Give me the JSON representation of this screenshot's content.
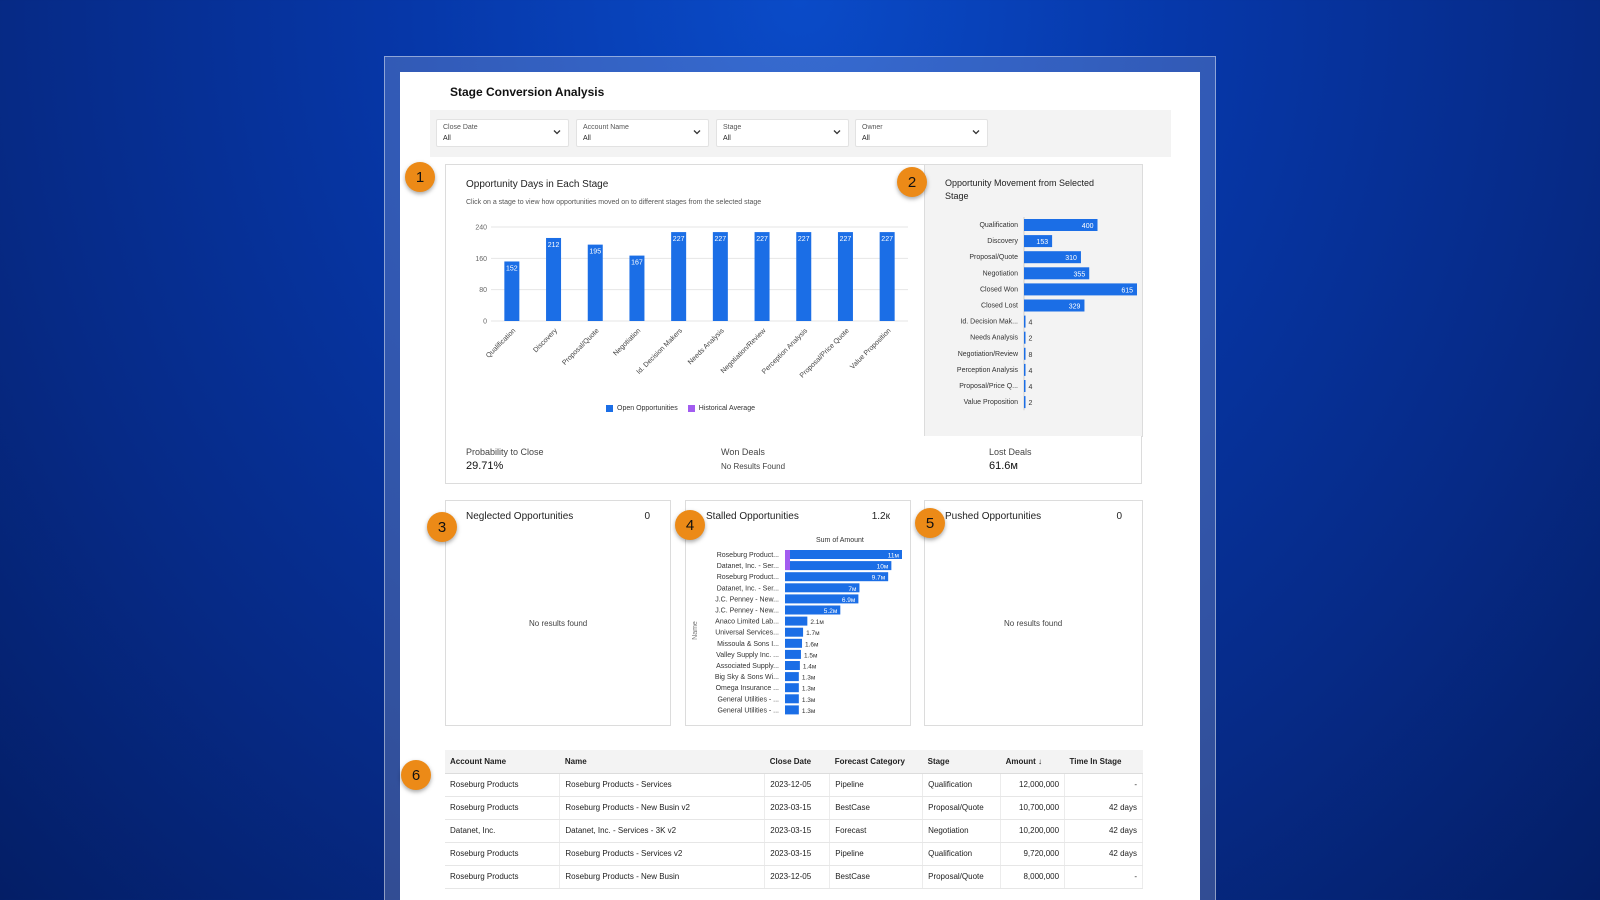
{
  "page": {
    "title": "Stage Conversion Analysis"
  },
  "filters": [
    {
      "label": "Close Date",
      "value": "All"
    },
    {
      "label": "Account Name",
      "value": "All"
    },
    {
      "label": "Stage",
      "value": "All"
    },
    {
      "label": "Owner",
      "value": "All"
    }
  ],
  "badges": [
    "1",
    "2",
    "3",
    "4",
    "5",
    "6"
  ],
  "colors": {
    "bar": "#1b6ee6",
    "historical": "#a25cf0",
    "badge": "#ec8a17",
    "background": "#0637a8"
  },
  "chart_days": {
    "title": "Opportunity Days in Each Stage",
    "subtitle": "Click on a stage to view how opportunities moved on to different stages from the selected stage",
    "legend": [
      "Open Opportunities",
      "Historical Average"
    ]
  },
  "chart_movement": {
    "title": "Opportunity Movement from Selected Stage"
  },
  "stats": {
    "probability_label": "Probability to Close",
    "probability_value": "29.71%",
    "won_label": "Won Deals",
    "won_value": "No Results Found",
    "lost_label": "Lost Deals",
    "lost_value": "61.6м"
  },
  "neglected": {
    "title": "Neglected Opportunities",
    "count": "0",
    "empty": "No results found"
  },
  "stalled": {
    "title": "Stalled Opportunities",
    "count": "1.2к",
    "chart_title": "Sum of Amount",
    "axis_label": "Name"
  },
  "pushed": {
    "title": "Pushed Opportunities",
    "count": "0",
    "empty": "No results found"
  },
  "table": {
    "headers": [
      "Account Name",
      "Name",
      "Close Date",
      "Forecast Category",
      "Stage",
      "Amount ↓",
      "Time In Stage"
    ],
    "rows": [
      [
        "Roseburg Products",
        "Roseburg Products - Services",
        "2023-12-05",
        "Pipeline",
        "Qualification",
        "12,000,000",
        "-"
      ],
      [
        "Roseburg Products",
        "Roseburg Products - New Busin v2",
        "2023-03-15",
        "BestCase",
        "Proposal/Quote",
        "10,700,000",
        "42 days"
      ],
      [
        "Datanet, Inc.",
        "Datanet, Inc. - Services - 3K v2",
        "2023-03-15",
        "Forecast",
        "Negotiation",
        "10,200,000",
        "42 days"
      ],
      [
        "Roseburg Products",
        "Roseburg Products - Services v2",
        "2023-03-15",
        "Pipeline",
        "Qualification",
        "9,720,000",
        "42 days"
      ],
      [
        "Roseburg Products",
        "Roseburg Products - New Busin",
        "2023-12-05",
        "BestCase",
        "Proposal/Quote",
        "8,000,000",
        "-"
      ]
    ]
  },
  "chart_data": [
    {
      "type": "bar",
      "title": "Opportunity Days in Each Stage",
      "categories": [
        "Qualification",
        "Discovery",
        "Proposal/Quote",
        "Negotiation",
        "Id. Decision Makers",
        "Needs Analysis",
        "Negotiation/Review",
        "Perception Analysis",
        "Proposal/Price Quote",
        "Value Proposition"
      ],
      "series": [
        {
          "name": "Open Opportunities",
          "values": [
            152,
            212,
            195,
            167,
            227,
            227,
            227,
            227,
            227,
            227
          ]
        }
      ],
      "yticks": [
        0,
        80,
        160,
        240
      ],
      "ylim": [
        0,
        240
      ],
      "xlabel": "",
      "ylabel": ""
    },
    {
      "type": "bar",
      "orientation": "horizontal",
      "title": "Opportunity Movement from Selected Stage",
      "categories": [
        "Qualification",
        "Discovery",
        "Proposal/Quote",
        "Negotiation",
        "Closed Won",
        "Closed Lost",
        "Id. Decision Mak...",
        "Needs Analysis",
        "Negotiation/Review",
        "Perception Analysis",
        "Proposal/Price Q...",
        "Value Proposition"
      ],
      "values": [
        400,
        153,
        310,
        355,
        615,
        329,
        4,
        2,
        8,
        4,
        4,
        2
      ],
      "xlim": [
        0,
        615
      ]
    },
    {
      "type": "bar",
      "orientation": "horizontal",
      "title": "Sum of Amount",
      "ylabel": "Name",
      "categories": [
        "Roseburg Product...",
        "Datanet, Inc. - Ser...",
        "Roseburg Product...",
        "Datanet, Inc. - Ser...",
        "J.C. Penney - New...",
        "J.C. Penney - New...",
        "Anaco Limited Lab...",
        "Universal Services...",
        "Missoula & Sons I...",
        "Valley Supply Inc. ...",
        "Associated Supply...",
        "Big Sky & Sons Wi...",
        "Omega Insurance ...",
        "General Utilities - ...",
        "General Utilities - ..."
      ],
      "values": [
        11,
        10,
        9.7,
        7,
        6.9,
        5.2,
        2.1,
        1.7,
        1.6,
        1.5,
        1.4,
        1.3,
        1.3,
        1.3,
        1.3
      ],
      "labels": [
        "11м",
        "10м",
        "9.7м",
        "7м",
        "6.9м",
        "5.2м",
        "2.1м",
        "1.7м",
        "1.6м",
        "1.5м",
        "1.4м",
        "1.3м",
        "1.3м",
        "1.3м",
        "1.3м"
      ],
      "unit": "M"
    }
  ]
}
